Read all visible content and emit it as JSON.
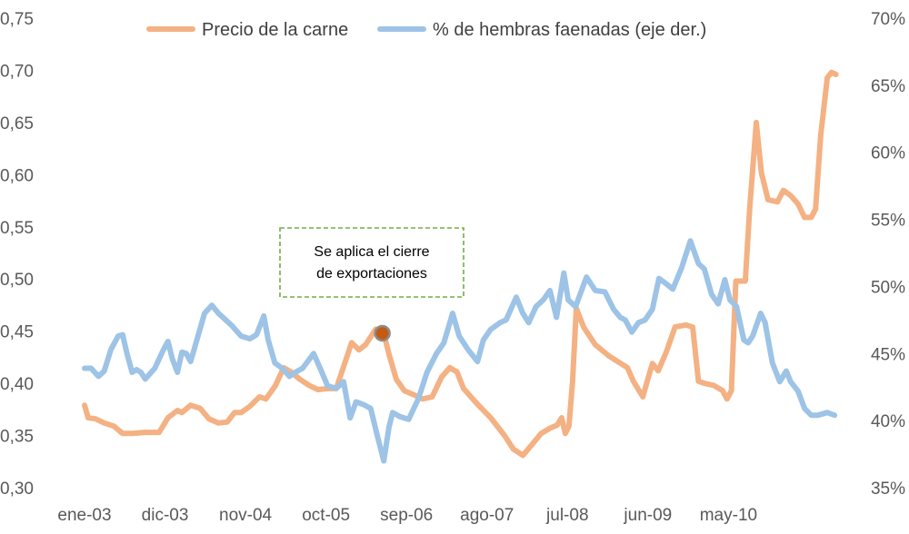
{
  "chart_data": {
    "type": "line",
    "title": "",
    "x_unit": "months since ene-03",
    "x_tick_labels": [
      "ene-03",
      "dic-03",
      "nov-04",
      "oct-05",
      "sep-06",
      "ago-07",
      "jul-08",
      "jun-09",
      "may-10"
    ],
    "x_tick_months": [
      0,
      11,
      22,
      33,
      44,
      55,
      66,
      77,
      88
    ],
    "y_left": {
      "min": 0.3,
      "max": 0.75,
      "ticks": [
        "0,30",
        "0,35",
        "0,40",
        "0,45",
        "0,50",
        "0,55",
        "0,60",
        "0,65",
        "0,70",
        "0,75"
      ]
    },
    "y_right": {
      "min": 35,
      "max": 70,
      "ticks": [
        "35%",
        "40%",
        "45%",
        "50%",
        "55%",
        "60%",
        "65%",
        "70%"
      ]
    },
    "grid": false,
    "legend_position": "top",
    "series": [
      {
        "name": "Precio de la carne",
        "axis": "left",
        "color": "#f4b183",
        "points": [
          [
            0,
            0.379
          ],
          [
            0.5,
            0.367
          ],
          [
            1.5,
            0.366
          ],
          [
            2.7,
            0.362
          ],
          [
            4.0,
            0.359
          ],
          [
            5.2,
            0.352
          ],
          [
            6.5,
            0.352
          ],
          [
            8.3,
            0.353
          ],
          [
            10.2,
            0.353
          ],
          [
            11.4,
            0.367
          ],
          [
            12.7,
            0.374
          ],
          [
            13.3,
            0.372
          ],
          [
            14.5,
            0.379
          ],
          [
            15.8,
            0.376
          ],
          [
            17.0,
            0.366
          ],
          [
            18.3,
            0.362
          ],
          [
            19.5,
            0.363
          ],
          [
            20.5,
            0.372
          ],
          [
            21.4,
            0.372
          ],
          [
            22.6,
            0.378
          ],
          [
            23.9,
            0.387
          ],
          [
            24.8,
            0.385
          ],
          [
            26.1,
            0.398
          ],
          [
            27.2,
            0.415
          ],
          [
            28.2,
            0.411
          ],
          [
            29.4,
            0.404
          ],
          [
            30.7,
            0.398
          ],
          [
            31.9,
            0.394
          ],
          [
            33.2,
            0.395
          ],
          [
            34.4,
            0.395
          ],
          [
            35.4,
            0.416
          ],
          [
            36.5,
            0.439
          ],
          [
            37.5,
            0.432
          ],
          [
            38.4,
            0.437
          ],
          [
            39.8,
            0.452
          ],
          [
            40.9,
            0.448
          ],
          [
            41.6,
            0.428
          ],
          [
            42.6,
            0.404
          ],
          [
            43.7,
            0.393
          ],
          [
            45.0,
            0.389
          ],
          [
            46.2,
            0.385
          ],
          [
            47.5,
            0.387
          ],
          [
            48.8,
            0.406
          ],
          [
            49.9,
            0.415
          ],
          [
            50.9,
            0.411
          ],
          [
            51.8,
            0.395
          ],
          [
            53.7,
            0.38
          ],
          [
            55.5,
            0.367
          ],
          [
            57.4,
            0.35
          ],
          [
            58.6,
            0.337
          ],
          [
            59.9,
            0.331
          ],
          [
            61.1,
            0.341
          ],
          [
            62.4,
            0.352
          ],
          [
            63.6,
            0.357
          ],
          [
            64.6,
            0.36
          ],
          [
            65.2,
            0.367
          ],
          [
            65.7,
            0.352
          ],
          [
            66.2,
            0.359
          ],
          [
            66.7,
            0.402
          ],
          [
            67.2,
            0.472
          ],
          [
            68.2,
            0.454
          ],
          [
            69.8,
            0.437
          ],
          [
            71.7,
            0.426
          ],
          [
            74.2,
            0.415
          ],
          [
            75.0,
            0.402
          ],
          [
            76.3,
            0.387
          ],
          [
            76.9,
            0.402
          ],
          [
            77.6,
            0.419
          ],
          [
            78.4,
            0.412
          ],
          [
            79.5,
            0.43
          ],
          [
            80.7,
            0.454
          ],
          [
            82.2,
            0.456
          ],
          [
            83.1,
            0.454
          ],
          [
            83.9,
            0.402
          ],
          [
            84.7,
            0.4
          ],
          [
            86.0,
            0.398
          ],
          [
            87.2,
            0.393
          ],
          [
            87.8,
            0.385
          ],
          [
            88.4,
            0.393
          ],
          [
            89.0,
            0.498
          ],
          [
            90.3,
            0.498
          ],
          [
            90.9,
            0.567
          ],
          [
            91.8,
            0.65
          ],
          [
            92.5,
            0.602
          ],
          [
            93.4,
            0.576
          ],
          [
            94.7,
            0.574
          ],
          [
            95.5,
            0.585
          ],
          [
            96.5,
            0.58
          ],
          [
            97.5,
            0.572
          ],
          [
            98.4,
            0.559
          ],
          [
            99.3,
            0.559
          ],
          [
            99.9,
            0.567
          ],
          [
            100.6,
            0.637
          ],
          [
            101.5,
            0.693
          ],
          [
            102.1,
            0.698
          ],
          [
            102.7,
            0.696
          ]
        ]
      },
      {
        "name": "% de hembras faenadas (eje der.)",
        "axis": "right",
        "color": "#9dc3e6",
        "points": [
          [
            0,
            43.9
          ],
          [
            0.9,
            43.9
          ],
          [
            1.9,
            43.3
          ],
          [
            2.7,
            43.7
          ],
          [
            3.6,
            45.3
          ],
          [
            4.6,
            46.3
          ],
          [
            5.2,
            46.4
          ],
          [
            5.8,
            45.0
          ],
          [
            6.5,
            43.6
          ],
          [
            7.1,
            43.8
          ],
          [
            7.7,
            43.6
          ],
          [
            8.3,
            43.1
          ],
          [
            9.6,
            43.9
          ],
          [
            10.8,
            45.3
          ],
          [
            11.4,
            45.9
          ],
          [
            12.0,
            44.6
          ],
          [
            12.7,
            43.6
          ],
          [
            13.3,
            45.1
          ],
          [
            13.9,
            45.0
          ],
          [
            14.5,
            44.4
          ],
          [
            15.5,
            46.3
          ],
          [
            16.4,
            48.0
          ],
          [
            17.4,
            48.6
          ],
          [
            18.3,
            48.0
          ],
          [
            19.3,
            47.5
          ],
          [
            20.1,
            47.1
          ],
          [
            21.4,
            46.3
          ],
          [
            22.6,
            46.1
          ],
          [
            23.5,
            46.4
          ],
          [
            24.5,
            47.8
          ],
          [
            25.1,
            46.0
          ],
          [
            26.0,
            44.3
          ],
          [
            27.0,
            43.9
          ],
          [
            28.0,
            43.3
          ],
          [
            28.8,
            43.6
          ],
          [
            29.8,
            43.9
          ],
          [
            31.3,
            45.0
          ],
          [
            32.2,
            43.9
          ],
          [
            33.2,
            42.6
          ],
          [
            34.4,
            42.4
          ],
          [
            35.4,
            42.9
          ],
          [
            36.3,
            40.2
          ],
          [
            37.1,
            41.4
          ],
          [
            38.1,
            41.2
          ],
          [
            39.1,
            40.9
          ],
          [
            40.0,
            38.9
          ],
          [
            40.9,
            37.0
          ],
          [
            41.6,
            39.5
          ],
          [
            42.1,
            40.6
          ],
          [
            43.1,
            40.3
          ],
          [
            44.3,
            40.1
          ],
          [
            45.6,
            41.6
          ],
          [
            46.8,
            43.6
          ],
          [
            48.1,
            45.0
          ],
          [
            49.1,
            45.8
          ],
          [
            50.3,
            48.0
          ],
          [
            51.2,
            46.3
          ],
          [
            52.4,
            45.3
          ],
          [
            53.7,
            44.4
          ],
          [
            54.5,
            46.0
          ],
          [
            55.5,
            46.8
          ],
          [
            56.8,
            47.3
          ],
          [
            57.6,
            47.5
          ],
          [
            59.0,
            49.2
          ],
          [
            59.9,
            48.0
          ],
          [
            60.7,
            47.3
          ],
          [
            61.7,
            48.5
          ],
          [
            62.7,
            49.0
          ],
          [
            63.6,
            49.7
          ],
          [
            64.5,
            47.7
          ],
          [
            65.5,
            51.0
          ],
          [
            66.1,
            49.0
          ],
          [
            67.1,
            48.5
          ],
          [
            68.6,
            50.7
          ],
          [
            69.8,
            49.7
          ],
          [
            71.1,
            49.6
          ],
          [
            72.3,
            48.3
          ],
          [
            73.2,
            47.7
          ],
          [
            73.9,
            47.5
          ],
          [
            74.8,
            46.6
          ],
          [
            75.7,
            47.3
          ],
          [
            76.6,
            47.5
          ],
          [
            77.6,
            48.3
          ],
          [
            78.5,
            50.6
          ],
          [
            79.5,
            50.2
          ],
          [
            80.4,
            49.8
          ],
          [
            81.6,
            51.4
          ],
          [
            82.8,
            53.4
          ],
          [
            83.9,
            51.7
          ],
          [
            84.7,
            51.3
          ],
          [
            85.7,
            49.4
          ],
          [
            86.6,
            48.7
          ],
          [
            87.5,
            50.5
          ],
          [
            88.2,
            49.0
          ],
          [
            89.1,
            48.5
          ],
          [
            90.1,
            46.0
          ],
          [
            90.7,
            45.8
          ],
          [
            91.3,
            46.3
          ],
          [
            92.4,
            48.0
          ],
          [
            93.0,
            47.3
          ],
          [
            94.0,
            44.3
          ],
          [
            95.0,
            42.9
          ],
          [
            95.9,
            43.7
          ],
          [
            96.5,
            42.9
          ],
          [
            97.5,
            42.2
          ],
          [
            98.4,
            40.9
          ],
          [
            99.3,
            40.4
          ],
          [
            100.2,
            40.4
          ],
          [
            101.5,
            40.6
          ],
          [
            102.5,
            40.4
          ]
        ]
      }
    ],
    "annotation": {
      "text_line1": "Se aplica el cierre",
      "text_line2": "de exportaciones",
      "point_month": 40.7,
      "point_value": 0.448,
      "marker_color": "#c55a11",
      "border_color": "#70ad47"
    }
  }
}
